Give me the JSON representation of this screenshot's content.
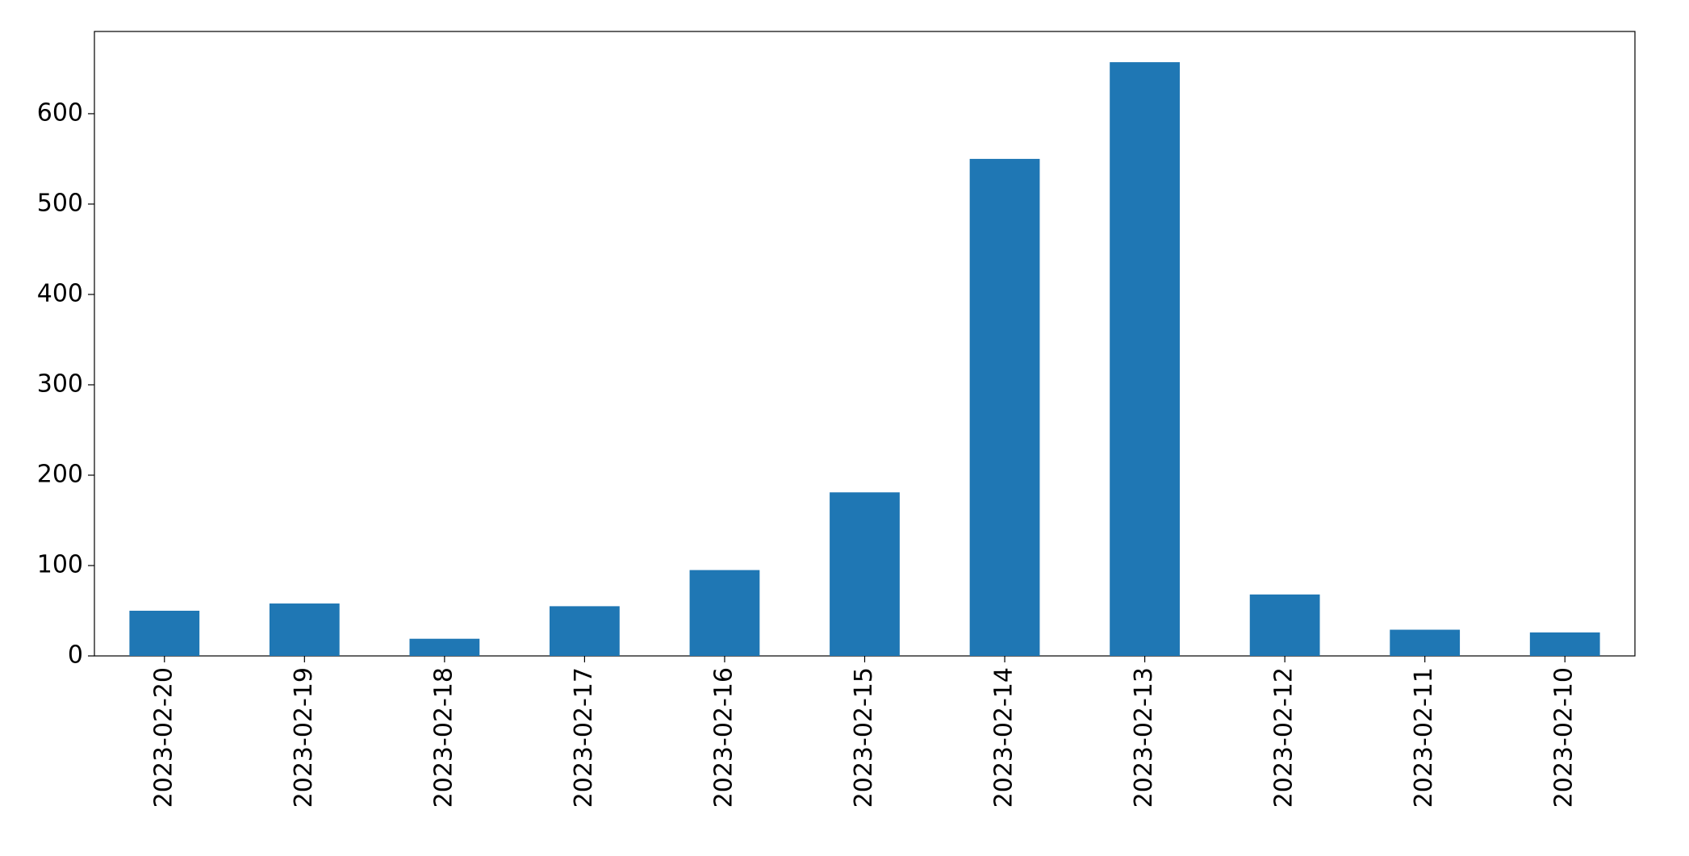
{
  "chart_data": {
    "type": "bar",
    "categories": [
      "2023-02-20",
      "2023-02-19",
      "2023-02-18",
      "2023-02-17",
      "2023-02-16",
      "2023-02-15",
      "2023-02-14",
      "2023-02-13",
      "2023-02-12",
      "2023-02-11",
      "2023-02-10"
    ],
    "values": [
      50,
      58,
      19,
      55,
      95,
      181,
      550,
      657,
      68,
      29,
      26
    ],
    "color": "#1f77b4",
    "ylim": [
      0,
      691
    ],
    "yticks": [
      0,
      100,
      200,
      300,
      400,
      500,
      600
    ],
    "grid": false
  }
}
